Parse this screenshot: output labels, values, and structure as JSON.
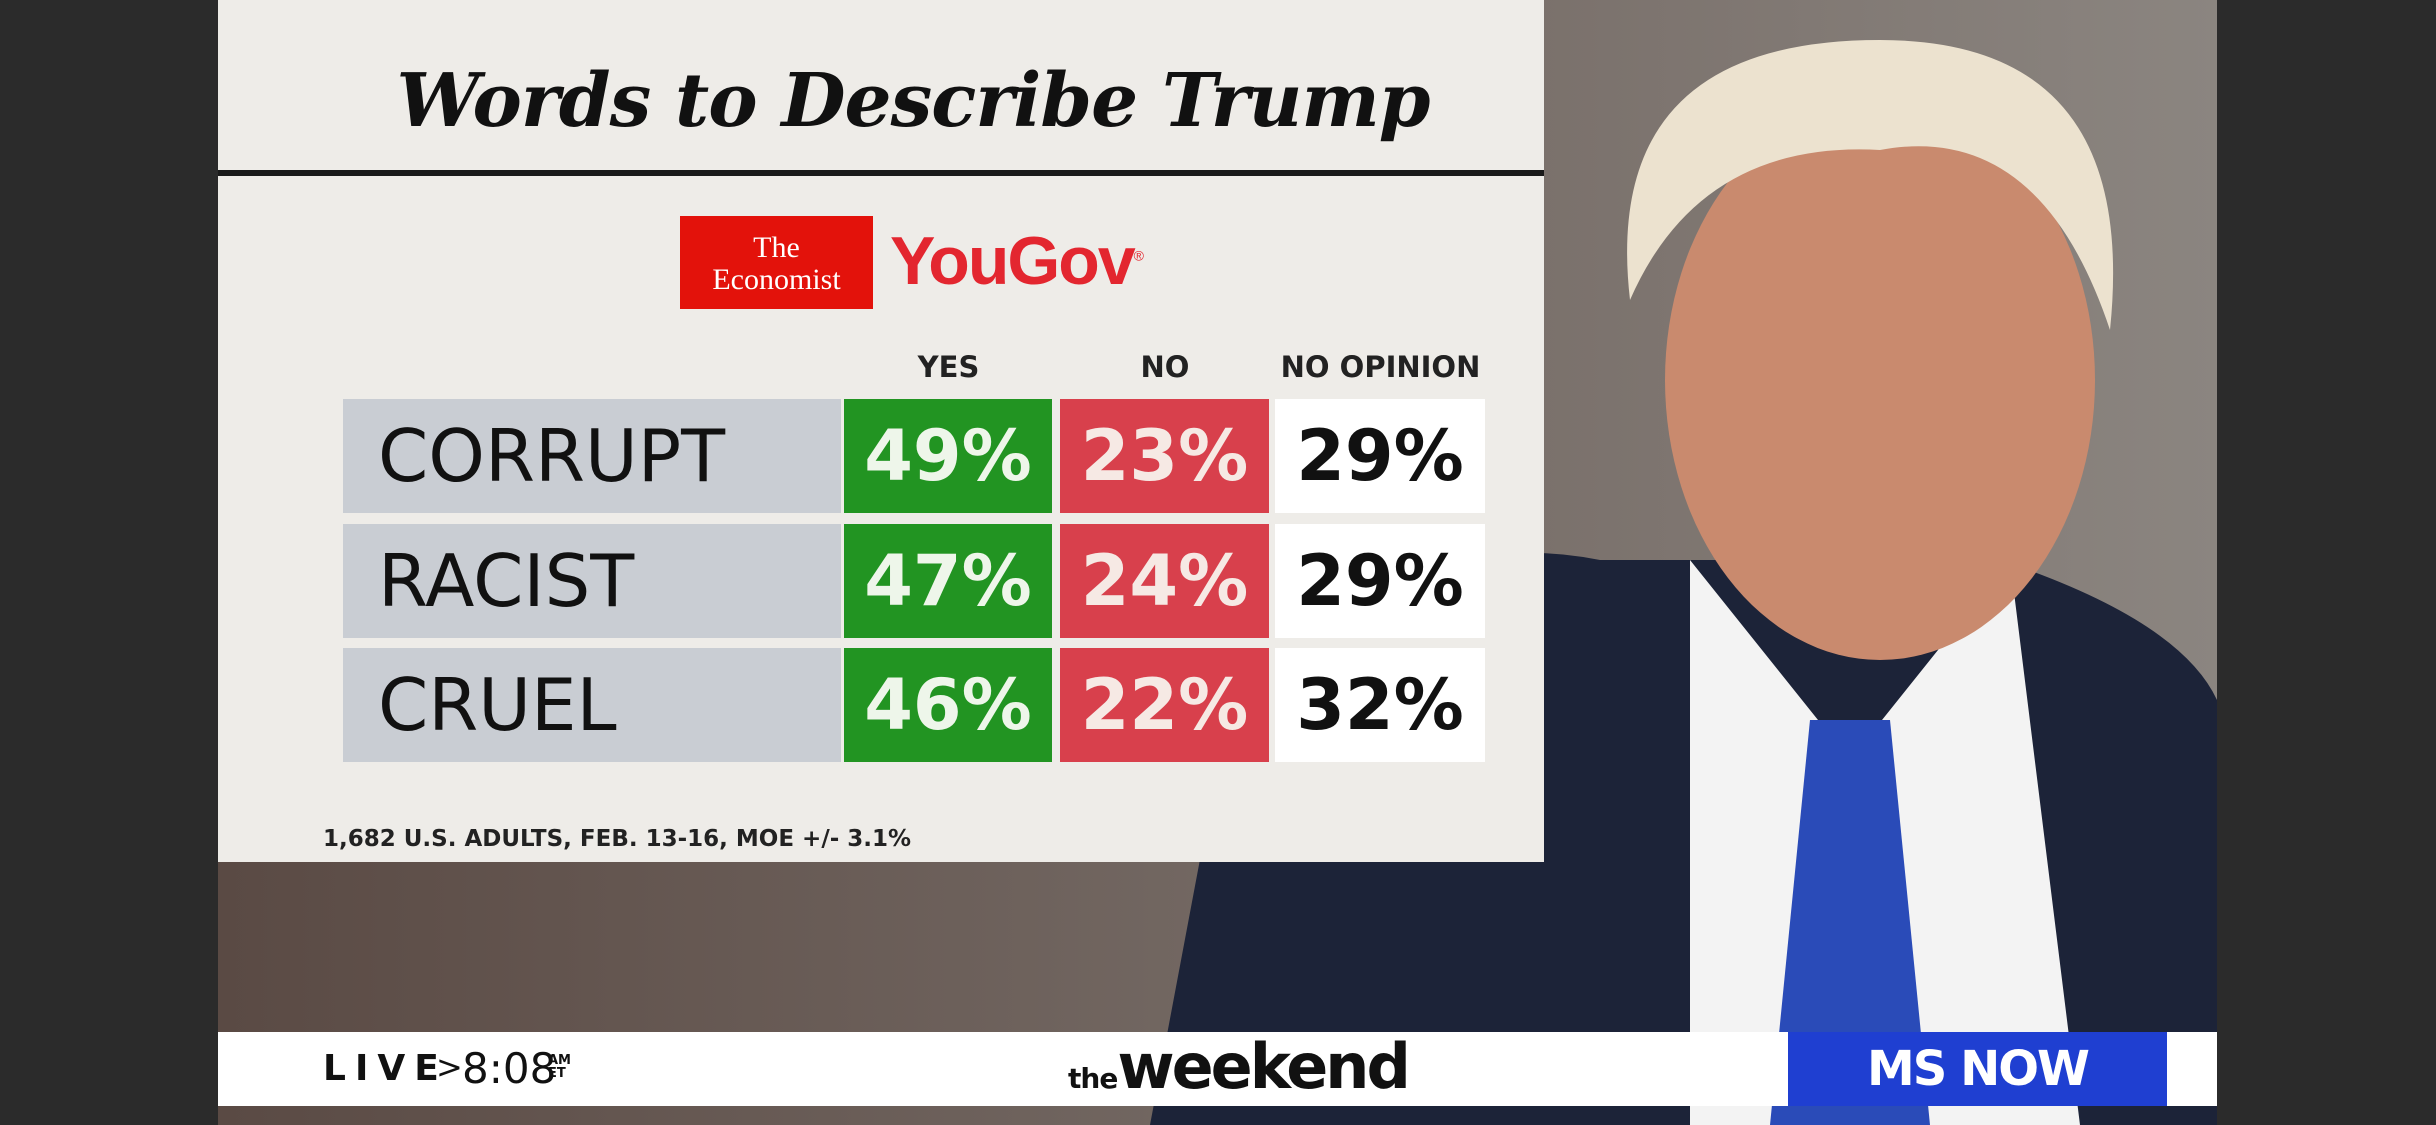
{
  "header": {
    "title": "Words to Describe Trump"
  },
  "logos": {
    "economist_line1": "The",
    "economist_line2": "Economist",
    "yougov": "YouGov",
    "yougov_mark": "®"
  },
  "table": {
    "columns": [
      "YES",
      "NO",
      "NO OPINION"
    ],
    "rows": [
      [
        "CORRUPT",
        "49%",
        "23%",
        "29%"
      ],
      [
        "RACIST",
        "47%",
        "24%",
        "29%"
      ],
      [
        "CRUEL",
        "46%",
        "22%",
        "32%"
      ]
    ]
  },
  "footnote": "1,682 U.S. ADULTS, FEB. 13-16, MOE +/- 3.1%",
  "ticker": {
    "live": "LIVE",
    "separator": ">",
    "time": "8:08",
    "am": "AM",
    "et": "ET",
    "show_prefix": "the",
    "show": "weekend",
    "network": "MS NOW"
  }
}
